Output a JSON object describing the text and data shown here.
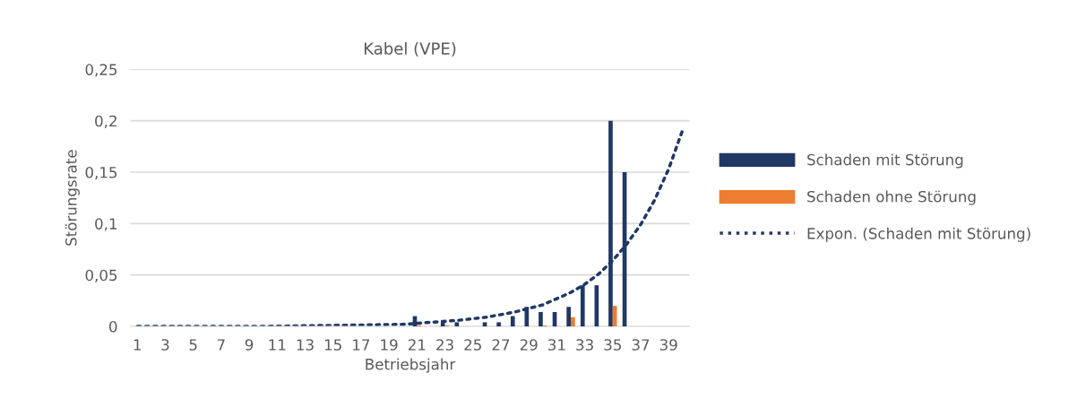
{
  "chart_data": {
    "type": "bar",
    "title": "Kabel (VPE)",
    "xlabel": "Betriebsjahr",
    "ylabel": "Störungsrate",
    "x": [
      1,
      2,
      3,
      4,
      5,
      6,
      7,
      8,
      9,
      10,
      11,
      12,
      13,
      14,
      15,
      16,
      17,
      18,
      19,
      20,
      21,
      22,
      23,
      24,
      25,
      26,
      27,
      28,
      29,
      30,
      31,
      32,
      33,
      34,
      35,
      36,
      37,
      38,
      39,
      40
    ],
    "series": [
      {
        "name": "Schaden mit Störung",
        "color": "#203864",
        "values": [
          0,
          0,
          0,
          0,
          0,
          0,
          0,
          0,
          0,
          0,
          0,
          0,
          0,
          0,
          0,
          0,
          0,
          0,
          0,
          0,
          0.01,
          0,
          0.004,
          0.004,
          0,
          0.004,
          0.004,
          0.01,
          0.019,
          0.014,
          0.014,
          0.019,
          0.04,
          0.04,
          0.2,
          0.15,
          0,
          0,
          0,
          0
        ]
      },
      {
        "name": "Schaden ohne Störung",
        "color": "#ed7d31",
        "values": [
          0,
          0,
          0,
          0,
          0,
          0,
          0,
          0,
          0,
          0,
          0,
          0,
          0,
          0,
          0,
          0,
          0,
          0,
          0,
          0,
          0.001,
          0,
          0.001,
          0,
          0,
          0,
          0,
          0,
          0,
          0.001,
          0,
          0.009,
          0,
          0,
          0.02,
          0,
          0,
          0,
          0,
          0
        ]
      },
      {
        "name": "Expon. (Schaden mit Störung)",
        "type": "line",
        "color": "#203864",
        "line_style": "dotted",
        "x": [
          1,
          5,
          10,
          15,
          20,
          22,
          24,
          26,
          28,
          30,
          31,
          32,
          33,
          34,
          35,
          36,
          37,
          38,
          39,
          40
        ],
        "values": [
          0,
          0,
          0,
          0.001,
          0.002,
          0.004,
          0.006,
          0.009,
          0.014,
          0.021,
          0.027,
          0.033,
          0.041,
          0.051,
          0.064,
          0.08,
          0.099,
          0.123,
          0.153,
          0.191
        ]
      }
    ],
    "xlim": [
      0.5,
      40.5
    ],
    "xticks": [
      1,
      3,
      5,
      7,
      9,
      11,
      13,
      15,
      17,
      19,
      21,
      23,
      25,
      27,
      29,
      31,
      33,
      35,
      37,
      39
    ],
    "ylim": [
      0,
      0.25
    ],
    "yticks": [
      {
        "value": 0,
        "label": "0"
      },
      {
        "value": 0.05,
        "label": "0,05"
      },
      {
        "value": 0.1,
        "label": "0,1"
      },
      {
        "value": 0.15,
        "label": "0,15"
      },
      {
        "value": 0.2,
        "label": "0,2"
      },
      {
        "value": 0.25,
        "label": "0,25"
      }
    ],
    "grid": "y",
    "legend": "right"
  }
}
